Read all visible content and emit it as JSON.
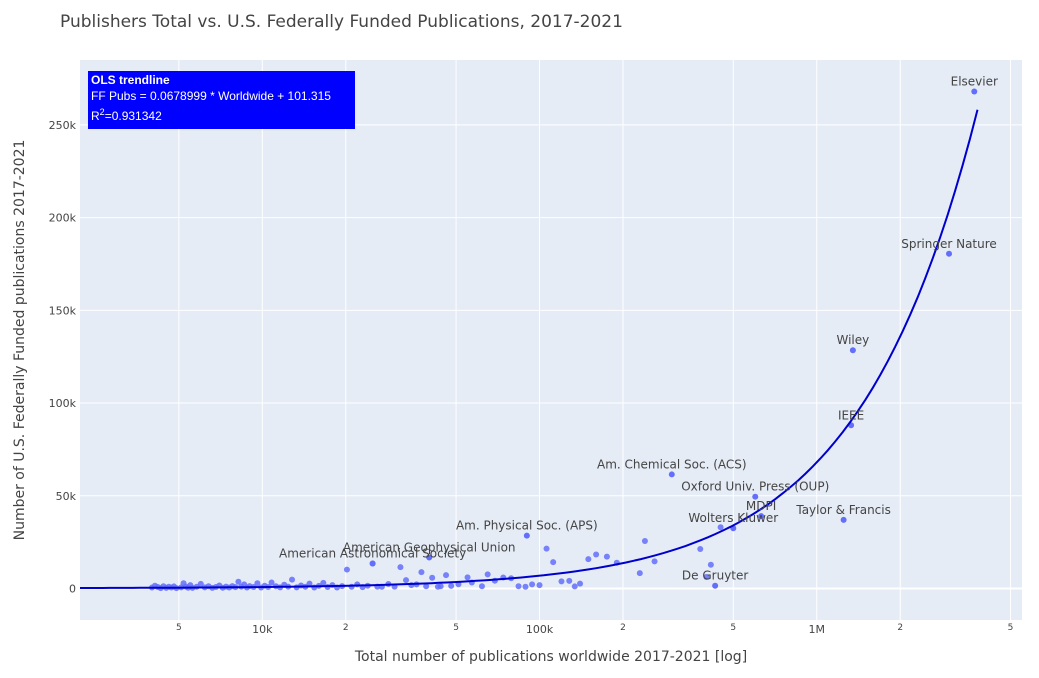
{
  "title": "Publishers Total vs. U.S. Federally Funded Publications, 2017-2021",
  "colors": {
    "background": "#ffffff",
    "plot_background": "#e5ecf6",
    "point": "#636efa",
    "trendline": "#0000cd",
    "annotation_box": "#0000ff"
  },
  "trendline_box": {
    "title": "OLS trendline",
    "equation": "FF Pubs = 0.0678999 * Worldwide + 101.315",
    "r2_label": "R",
    "r2_sup": "2",
    "r2_value": "=0.931342"
  },
  "chart_data": {
    "type": "scatter",
    "title": "Publishers Total vs. U.S. Federally Funded Publications, 2017-2021",
    "xlabel": "Total number of publications worldwide 2017-2021 [log]",
    "ylabel": "Number of U.S. Federally Funded publications 2017-2021",
    "xscale": "log",
    "xlim": [
      2200,
      5500000
    ],
    "ylim": [
      -17000,
      285000
    ],
    "grid": true,
    "x_ticks": [
      {
        "value": 5000,
        "label": "5",
        "minor": true
      },
      {
        "value": 10000,
        "label": "10k",
        "minor": false
      },
      {
        "value": 20000,
        "label": "2",
        "minor": true
      },
      {
        "value": 50000,
        "label": "5",
        "minor": true
      },
      {
        "value": 100000,
        "label": "100k",
        "minor": false
      },
      {
        "value": 200000,
        "label": "2",
        "minor": true
      },
      {
        "value": 500000,
        "label": "5",
        "minor": true
      },
      {
        "value": 1000000,
        "label": "1M",
        "minor": false
      },
      {
        "value": 2000000,
        "label": "2",
        "minor": true
      },
      {
        "value": 5000000,
        "label": "5",
        "minor": true
      }
    ],
    "y_ticks": [
      {
        "value": 0,
        "label": "0"
      },
      {
        "value": 50000,
        "label": "50k"
      },
      {
        "value": 100000,
        "label": "100k"
      },
      {
        "value": 150000,
        "label": "150k"
      },
      {
        "value": 200000,
        "label": "200k"
      },
      {
        "value": 250000,
        "label": "250k"
      }
    ],
    "labeled_points": [
      {
        "label": "Elsevier",
        "x": 3700000,
        "y": 268000,
        "anchor": "above"
      },
      {
        "label": "Springer Nature",
        "x": 3000000,
        "y": 180500,
        "anchor": "above"
      },
      {
        "label": "Wiley",
        "x": 1350000,
        "y": 128500,
        "anchor": "above"
      },
      {
        "label": "IEEE",
        "x": 1330000,
        "y": 88000,
        "anchor": "above"
      },
      {
        "label": "Am. Chemical Soc. (ACS)",
        "x": 300000,
        "y": 61500,
        "anchor": "above"
      },
      {
        "label": "Oxford Univ. Press (OUP)",
        "x": 600000,
        "y": 49500,
        "anchor": "above"
      },
      {
        "label": "Taylor & Francis",
        "x": 1250000,
        "y": 37000,
        "anchor": "above"
      },
      {
        "label": "MDPI",
        "x": 630000,
        "y": 39000,
        "anchor": "above"
      },
      {
        "label": "Wolters Kluwer",
        "x": 500000,
        "y": 32500,
        "anchor": "above"
      },
      {
        "label": "Am. Physical Soc. (APS)",
        "x": 90000,
        "y": 28500,
        "anchor": "above"
      },
      {
        "label": "American Astronomical Society",
        "x": 25000,
        "y": 13500,
        "anchor": "above"
      },
      {
        "label": "American Geophysical Union",
        "x": 40000,
        "y": 16800,
        "anchor": "above"
      },
      {
        "label": "De Gruyter",
        "x": 430000,
        "y": 1500,
        "anchor": "above"
      }
    ],
    "points": [
      [
        4000,
        500
      ],
      [
        4100,
        1500
      ],
      [
        4200,
        800
      ],
      [
        4300,
        200
      ],
      [
        4400,
        1200
      ],
      [
        4500,
        300
      ],
      [
        4600,
        900
      ],
      [
        4700,
        500
      ],
      [
        4800,
        1100
      ],
      [
        4900,
        200
      ],
      [
        5100,
        600
      ],
      [
        5200,
        2800
      ],
      [
        5300,
        1000
      ],
      [
        5400,
        400
      ],
      [
        5500,
        1800
      ],
      [
        5600,
        300
      ],
      [
        5800,
        900
      ],
      [
        6000,
        2500
      ],
      [
        6200,
        600
      ],
      [
        6400,
        1200
      ],
      [
        6600,
        300
      ],
      [
        6800,
        800
      ],
      [
        7000,
        1600
      ],
      [
        7200,
        400
      ],
      [
        7400,
        1000
      ],
      [
        7600,
        500
      ],
      [
        7800,
        1300
      ],
      [
        8000,
        700
      ],
      [
        8200,
        3600
      ],
      [
        8400,
        1000
      ],
      [
        8600,
        2200
      ],
      [
        8800,
        500
      ],
      [
        9000,
        1300
      ],
      [
        9300,
        800
      ],
      [
        9600,
        2800
      ],
      [
        9900,
        500
      ],
      [
        10200,
        1500
      ],
      [
        10500,
        800
      ],
      [
        10800,
        3200
      ],
      [
        11200,
        1200
      ],
      [
        11600,
        600
      ],
      [
        12000,
        2000
      ],
      [
        12400,
        1000
      ],
      [
        12800,
        4800
      ],
      [
        13300,
        600
      ],
      [
        13800,
        1600
      ],
      [
        14300,
        900
      ],
      [
        14800,
        2600
      ],
      [
        15400,
        500
      ],
      [
        16000,
        1400
      ],
      [
        16600,
        3000
      ],
      [
        17200,
        800
      ],
      [
        17900,
        1800
      ],
      [
        18600,
        500
      ],
      [
        19400,
        1300
      ],
      [
        20200,
        10200
      ],
      [
        21000,
        900
      ],
      [
        22000,
        2200
      ],
      [
        23000,
        700
      ],
      [
        24000,
        1500
      ],
      [
        25000,
        13500
      ],
      [
        26000,
        1000
      ],
      [
        27000,
        900
      ],
      [
        28500,
        2400
      ],
      [
        30000,
        1000
      ],
      [
        31500,
        11500
      ],
      [
        33000,
        4500
      ],
      [
        34500,
        1800
      ],
      [
        36000,
        2200
      ],
      [
        37500,
        8800
      ],
      [
        39000,
        1200
      ],
      [
        40000,
        16800
      ],
      [
        41000,
        5800
      ],
      [
        43000,
        900
      ],
      [
        44000,
        1200
      ],
      [
        46000,
        7200
      ],
      [
        48000,
        1400
      ],
      [
        51000,
        2300
      ],
      [
        55000,
        6000
      ],
      [
        57000,
        3200
      ],
      [
        62000,
        1200
      ],
      [
        65000,
        7600
      ],
      [
        69000,
        4200
      ],
      [
        74000,
        5900
      ],
      [
        79000,
        5500
      ],
      [
        84000,
        1200
      ],
      [
        89000,
        900
      ],
      [
        94000,
        2200
      ],
      [
        100000,
        1800
      ],
      [
        106000,
        21500
      ],
      [
        112000,
        14200
      ],
      [
        120000,
        3800
      ],
      [
        128000,
        4100
      ],
      [
        134000,
        1100
      ],
      [
        140000,
        2600
      ],
      [
        150000,
        15800
      ],
      [
        160000,
        18300
      ],
      [
        175000,
        17200
      ],
      [
        190000,
        13900
      ],
      [
        230000,
        8300
      ],
      [
        240000,
        25600
      ],
      [
        260000,
        14600
      ],
      [
        380000,
        21300
      ],
      [
        400000,
        6200
      ],
      [
        415000,
        12800
      ],
      [
        450000,
        33000
      ]
    ],
    "trendline": {
      "slope": 0.0678999,
      "intercept": 101.315,
      "x_range": [
        2200,
        3800000
      ]
    }
  }
}
